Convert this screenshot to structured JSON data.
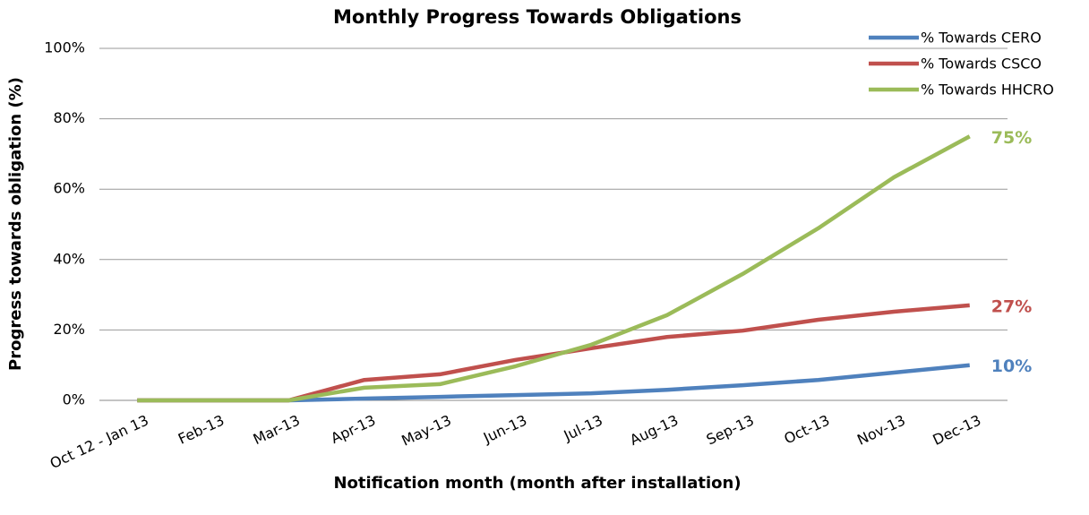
{
  "chart_data": {
    "type": "line",
    "title": "Monthly Progress Towards Obligations",
    "x_label": "Notification month (month after installation)",
    "y_label": "Progress towards obligation (%)",
    "categories": [
      "Oct 12 - Jan 13",
      "Feb-13",
      "Mar-13",
      "Apr-13",
      "May-13",
      "Jun-13",
      "Jul-13",
      "Aug-13",
      "Sep-13",
      "Oct-13",
      "Nov-13",
      "Dec-13"
    ],
    "series": [
      {
        "name": "% Towards CERO",
        "color": "#4f81bd",
        "values": [
          0,
          0,
          0,
          0.5,
          1,
          1.5,
          2,
          3,
          4.3,
          5.8,
          7.9,
          10
        ],
        "value_labels": [
          null,
          null,
          null,
          null,
          null,
          null,
          null,
          null,
          null,
          null,
          null,
          "10%"
        ]
      },
      {
        "name": "% Towards CSCO",
        "color": "#c0504d",
        "values": [
          0,
          0,
          0,
          5.8,
          7.4,
          11.5,
          14.8,
          18,
          19.8,
          22.9,
          25.2,
          27
        ],
        "value_labels": [
          null,
          null,
          null,
          null,
          null,
          null,
          null,
          null,
          null,
          null,
          null,
          "27%"
        ]
      },
      {
        "name": "% Towards HHCRO",
        "color": "#9bbb59",
        "values": [
          0,
          0,
          0,
          3.6,
          4.6,
          9.7,
          15.8,
          24.2,
          35.9,
          48.9,
          63.4,
          75
        ],
        "value_labels": [
          null,
          null,
          null,
          null,
          null,
          null,
          null,
          null,
          null,
          null,
          null,
          "75%"
        ]
      }
    ],
    "ylim": [
      0,
      100
    ],
    "yticks": [
      {
        "value": 0,
        "label": "0%"
      },
      {
        "value": 20,
        "label": "20%"
      },
      {
        "value": 40,
        "label": "40%"
      },
      {
        "value": 60,
        "label": "60%"
      },
      {
        "value": 80,
        "label": "80%"
      },
      {
        "value": 100,
        "label": "100%"
      }
    ],
    "grid": true,
    "legend": "top-right"
  }
}
